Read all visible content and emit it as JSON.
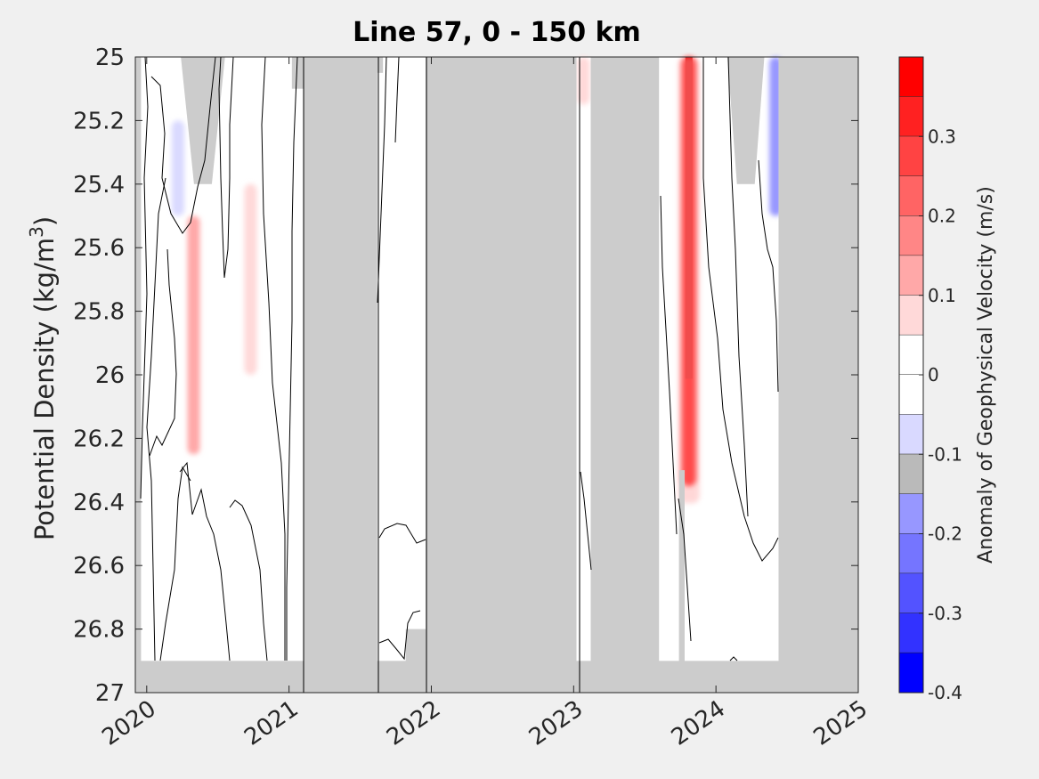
{
  "chart_data": {
    "type": "heatmap",
    "title": "Line 57, 0 - 150 km",
    "ylabel": "Potential Density (kg/m",
    "ylabel_sup": "3",
    "ylabel_close": ")",
    "y_ticks": [
      "25",
      "25.2",
      "25.4",
      "25.6",
      "25.8",
      "26",
      "26.2",
      "26.4",
      "26.6",
      "26.8",
      "27"
    ],
    "y_tick_values": [
      25,
      25.2,
      25.4,
      25.6,
      25.8,
      26,
      26.2,
      26.4,
      26.6,
      26.8,
      27
    ],
    "ylim": [
      25,
      27
    ],
    "y_reversed": true,
    "x_ticks": [
      "2020",
      "2021",
      "2022",
      "2023",
      "2024",
      "2025"
    ],
    "x_tick_values": [
      2020,
      2021,
      2022,
      2023,
      2024,
      2025
    ],
    "xlim": [
      2019.92,
      2025
    ],
    "no_data_color": "#cccccc",
    "colorbar": {
      "label": "Anomaly of Geophysical Velocity (m/s)",
      "range": [
        -0.4,
        0.4
      ],
      "tick_labels": [
        "0.3",
        "0.2",
        "0.1",
        "0",
        "-0.1",
        "-0.2",
        "-0.3",
        "-0.4"
      ],
      "tick_values": [
        0.3,
        0.2,
        0.1,
        0,
        -0.1,
        -0.2,
        -0.3,
        -0.4
      ],
      "levels": [
        {
          "from": 0.35,
          "to": 0.4,
          "color": "#ff0000"
        },
        {
          "from": 0.3,
          "to": 0.35,
          "color": "#ff2121"
        },
        {
          "from": 0.25,
          "to": 0.3,
          "color": "#ff4343"
        },
        {
          "from": 0.2,
          "to": 0.25,
          "color": "#ff6464"
        },
        {
          "from": 0.15,
          "to": 0.2,
          "color": "#ff8686"
        },
        {
          "from": 0.1,
          "to": 0.15,
          "color": "#ffa8a8"
        },
        {
          "from": 0.05,
          "to": 0.1,
          "color": "#ffd9d9"
        },
        {
          "from": 0,
          "to": 0.05,
          "color": "#ffffff"
        },
        {
          "from": -0.05,
          "to": 0,
          "color": "#ffffff"
        },
        {
          "from": -0.1,
          "to": -0.05,
          "color": "#d9d9ff"
        },
        {
          "from": -0.15,
          "to": -0.1,
          "color": "#bababa"
        },
        {
          "from": -0.2,
          "to": -0.15,
          "color": "#9797ff"
        },
        {
          "from": -0.25,
          "to": -0.2,
          "color": "#7575ff"
        },
        {
          "from": -0.3,
          "to": -0.25,
          "color": "#5353ff"
        },
        {
          "from": -0.35,
          "to": -0.3,
          "color": "#3232ff"
        },
        {
          "from": -0.4,
          "to": -0.35,
          "color": "#0000ff"
        }
      ]
    },
    "no_data_regions": [
      {
        "x": [
          2021.1,
          2021.62
        ],
        "y": [
          25,
          27
        ]
      },
      {
        "x": [
          2021.96,
          2023.02
        ],
        "y": [
          25,
          27
        ]
      },
      {
        "x": [
          2023.12,
          2023.6
        ],
        "y": [
          25,
          27
        ]
      },
      {
        "x": [
          2024.44,
          2025
        ],
        "y": [
          25,
          27
        ]
      },
      {
        "x": [
          2019.92,
          2025
        ],
        "y": [
          26.9,
          27
        ]
      },
      {
        "x": [
          2021.82,
          2021.96
        ],
        "y": [
          26.8,
          27
        ]
      }
    ],
    "anomalies": [
      {
        "x": 2023.81,
        "y_range": [
          25,
          26.35
        ],
        "value": 0.35,
        "note": "strong positive band"
      },
      {
        "x": 2020.33,
        "y_range": [
          25.5,
          26.25
        ],
        "value": 0.1
      },
      {
        "x": 2020.73,
        "y_range": [
          25.4,
          26.0
        ],
        "value": 0.08
      },
      {
        "x": 2020.22,
        "y_range": [
          25.2,
          25.5
        ],
        "value": -0.1
      },
      {
        "x": 2024.42,
        "y_range": [
          25,
          25.5
        ],
        "value": -0.2
      },
      {
        "x": 2023.07,
        "y_range": [
          25,
          25.15
        ],
        "value": 0.08
      }
    ]
  }
}
